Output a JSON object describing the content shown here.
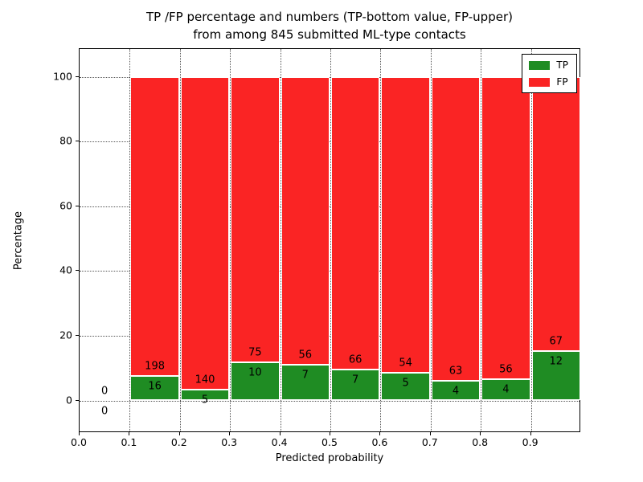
{
  "title": {
    "line1": "TP /FP percentage and numbers (TP-bottom value, FP-upper)",
    "line2": "from among 845 submitted ML-type contacts"
  },
  "axes": {
    "xlabel": "Predicted probability",
    "ylabel": "Percentage",
    "xticks": [
      "0.0",
      "0.1",
      "0.2",
      "0.3",
      "0.4",
      "0.5",
      "0.6",
      "0.7",
      "0.8",
      "0.9"
    ],
    "yticks": [
      "0",
      "20",
      "40",
      "60",
      "80",
      "100"
    ]
  },
  "legend": {
    "items": [
      {
        "label": "TP",
        "color": "#1f8c23"
      },
      {
        "label": "FP",
        "color": "#fa2424"
      }
    ]
  },
  "chart_data": {
    "type": "bar",
    "subtype": "stacked-percentage-histogram",
    "title": "TP /FP percentage and numbers (TP-bottom value, FP-upper) from among 845 submitted ML-type contacts",
    "xlabel": "Predicted probability",
    "ylabel": "Percentage",
    "total_contacts": 845,
    "xlim": [
      0.0,
      1.0
    ],
    "ylim": [
      -10,
      108.6
    ],
    "bin_width": 0.1,
    "grid": true,
    "legend_position": "upper right",
    "colors": {
      "tp": "#1f8c23",
      "fp": "#fa2424"
    },
    "note": "Each bar is normalized to 100%; printed numbers are raw counts (TP bottom, FP upper)",
    "bins": [
      {
        "x_start": 0.0,
        "x_end": 0.1,
        "tp": 0,
        "fp": 0
      },
      {
        "x_start": 0.1,
        "x_end": 0.2,
        "tp": 16,
        "fp": 198
      },
      {
        "x_start": 0.2,
        "x_end": 0.3,
        "tp": 5,
        "fp": 140
      },
      {
        "x_start": 0.3,
        "x_end": 0.4,
        "tp": 10,
        "fp": 75
      },
      {
        "x_start": 0.4,
        "x_end": 0.5,
        "tp": 7,
        "fp": 56
      },
      {
        "x_start": 0.5,
        "x_end": 0.6,
        "tp": 7,
        "fp": 66
      },
      {
        "x_start": 0.6,
        "x_end": 0.7,
        "tp": 5,
        "fp": 54
      },
      {
        "x_start": 0.7,
        "x_end": 0.8,
        "tp": 4,
        "fp": 63
      },
      {
        "x_start": 0.8,
        "x_end": 0.9,
        "tp": 4,
        "fp": 56
      },
      {
        "x_start": 0.9,
        "x_end": 1.0,
        "tp": 12,
        "fp": 67
      }
    ]
  }
}
